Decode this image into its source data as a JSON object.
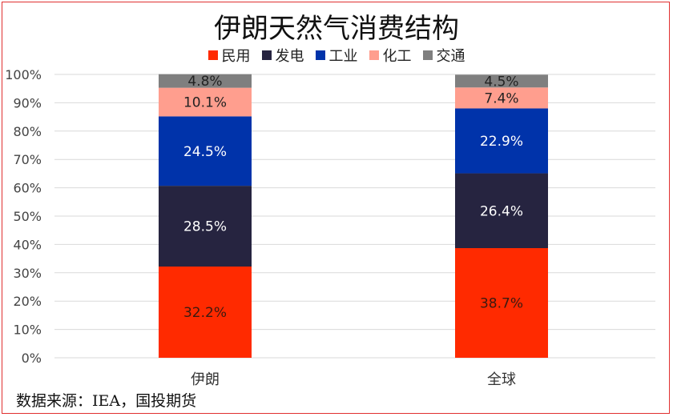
{
  "chart_data": {
    "type": "bar",
    "stacked": true,
    "title": "伊朗天然气消费结构",
    "categories": [
      "伊朗",
      "全球"
    ],
    "series": [
      {
        "name": "民用",
        "color": "#ff2a00",
        "values": [
          32.2,
          38.7
        ],
        "labels": [
          "32.2%",
          "38.7%"
        ],
        "label_color": "#3a1a10"
      },
      {
        "name": "发电",
        "color": "#262440",
        "values": [
          28.5,
          26.4
        ],
        "labels": [
          "28.5%",
          "26.4%"
        ],
        "label_color": "#ffffff"
      },
      {
        "name": "工业",
        "color": "#0033aa",
        "values": [
          24.5,
          22.9
        ],
        "labels": [
          "24.5%",
          "22.9%"
        ],
        "label_color": "#ffffff"
      },
      {
        "name": "化工",
        "color": "#ff9e8e",
        "values": [
          10.1,
          7.4
        ],
        "labels": [
          "10.1%",
          "7.4%"
        ],
        "label_color": "#222222"
      },
      {
        "name": "交通",
        "color": "#7f7f7f",
        "values": [
          4.8,
          4.5
        ],
        "labels": [
          "4.8%",
          "4.5%"
        ],
        "label_color": "#222222"
      }
    ],
    "ylim": [
      0,
      100
    ],
    "yticks": [
      "0%",
      "10%",
      "20%",
      "30%",
      "40%",
      "50%",
      "60%",
      "70%",
      "80%",
      "90%",
      "100%"
    ],
    "grid": true,
    "legend_position": "top"
  },
  "source": "数据来源：IEA，国投期货"
}
